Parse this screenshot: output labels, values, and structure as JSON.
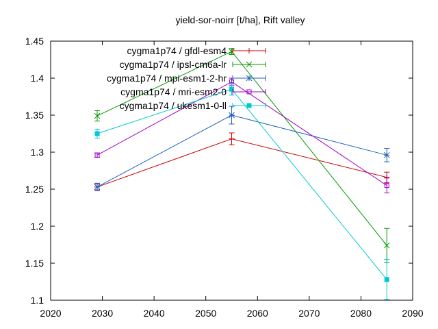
{
  "chart_data": {
    "type": "line",
    "title": "yield-sor-noirr [t/ha], Rift valley",
    "xlabel": "",
    "ylabel": "",
    "xlim": [
      2020,
      2090
    ],
    "ylim": [
      1.1,
      1.45
    ],
    "x_ticks": [
      2020,
      2030,
      2040,
      2050,
      2060,
      2070,
      2080,
      2090
    ],
    "y_ticks": [
      1.1,
      1.15,
      1.2,
      1.25,
      1.3,
      1.35,
      1.4,
      1.45
    ],
    "x_tick_labels": [
      "2020",
      "2030",
      "2040",
      "2050",
      "2060",
      "2070",
      "2080",
      "2090"
    ],
    "y_tick_labels": [
      "1.1",
      "1.15",
      "1.2",
      "1.25",
      "1.3",
      "1.35",
      "1.4",
      "1.45"
    ],
    "grid": false,
    "legend_position": "top-left",
    "x": [
      2029,
      2055,
      2085
    ],
    "series": [
      {
        "name": "cygma1p74 / gfdl-esm4",
        "color": "#cc0000",
        "marker": "plus",
        "values": [
          1.253,
          1.318,
          1.266
        ],
        "errors": [
          0.004,
          0.008,
          0.007
        ]
      },
      {
        "name": "cygma1p74 / ipsl-cm6a-lr",
        "color": "#009900",
        "marker": "cross",
        "values": [
          1.349,
          1.436,
          1.174
        ],
        "errors": [
          0.007,
          0.004,
          0.023
        ]
      },
      {
        "name": "cygma1p74 / mpi-esm1-2-hr",
        "color": "#1f5fbf",
        "marker": "star",
        "values": [
          1.253,
          1.35,
          1.296
        ],
        "errors": [
          0.005,
          0.012,
          0.009
        ]
      },
      {
        "name": "cygma1p74 / mri-esm2-0",
        "color": "#a000c8",
        "marker": "square-open",
        "values": [
          1.296,
          1.395,
          1.255
        ],
        "errors": [
          0.003,
          0.005,
          0.01
        ]
      },
      {
        "name": "cygma1p74 / ukesm1-0-ll",
        "color": "#00c8d2",
        "marker": "square-filled",
        "values": [
          1.325,
          1.385,
          1.128
        ],
        "errors": [
          0.006,
          0.008,
          0.027
        ]
      }
    ]
  }
}
